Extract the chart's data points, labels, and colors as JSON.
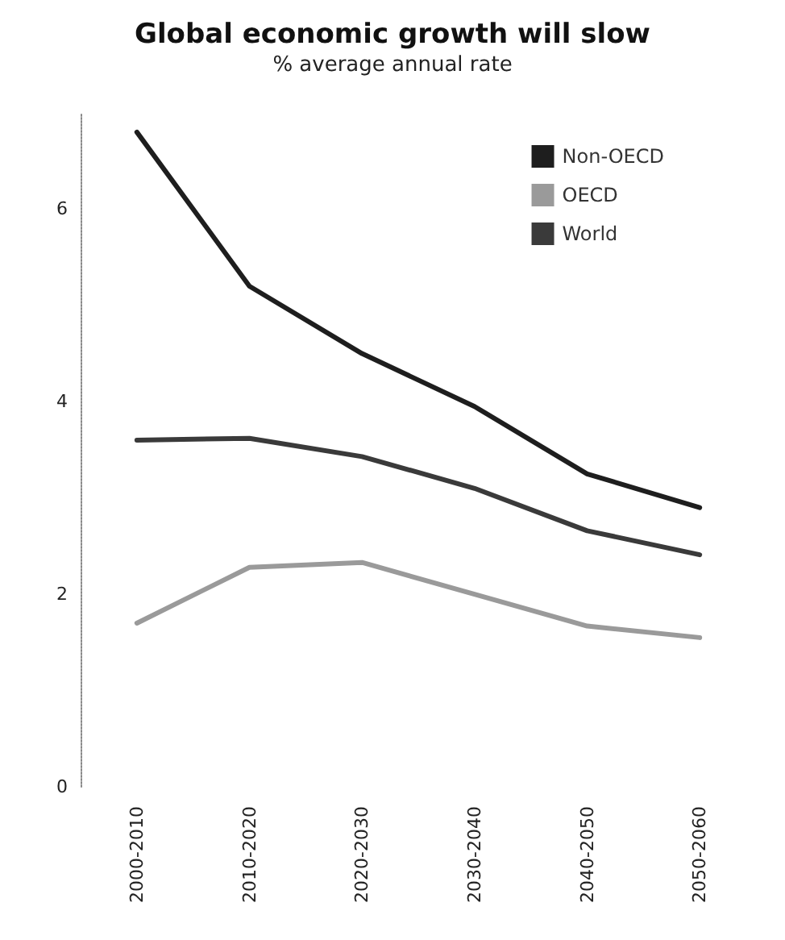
{
  "chart_data": {
    "type": "line",
    "title": "Global economic growth will slow",
    "subtitle": "% average annual rate",
    "categories": [
      "2000-2010",
      "2010-2020",
      "2020-2030",
      "2030-2040",
      "2040-2050",
      "2050-2060"
    ],
    "series": [
      {
        "name": "Non-OECD",
        "color": "#1e1e1e",
        "values": [
          6.8,
          5.2,
          4.5,
          3.95,
          3.25,
          2.9
        ]
      },
      {
        "name": "OECD",
        "color": "#9a9a9a",
        "values": [
          1.7,
          2.28,
          2.33,
          2.0,
          1.67,
          1.55
        ]
      },
      {
        "name": "World",
        "color": "#3a3a3a",
        "values": [
          3.6,
          3.62,
          3.43,
          3.1,
          2.66,
          2.41
        ]
      }
    ],
    "ylim": [
      0,
      7
    ],
    "yticks": [
      0,
      2,
      4,
      6
    ],
    "grid": false,
    "legend": "top right",
    "marker": "none",
    "line_style": "solid"
  }
}
